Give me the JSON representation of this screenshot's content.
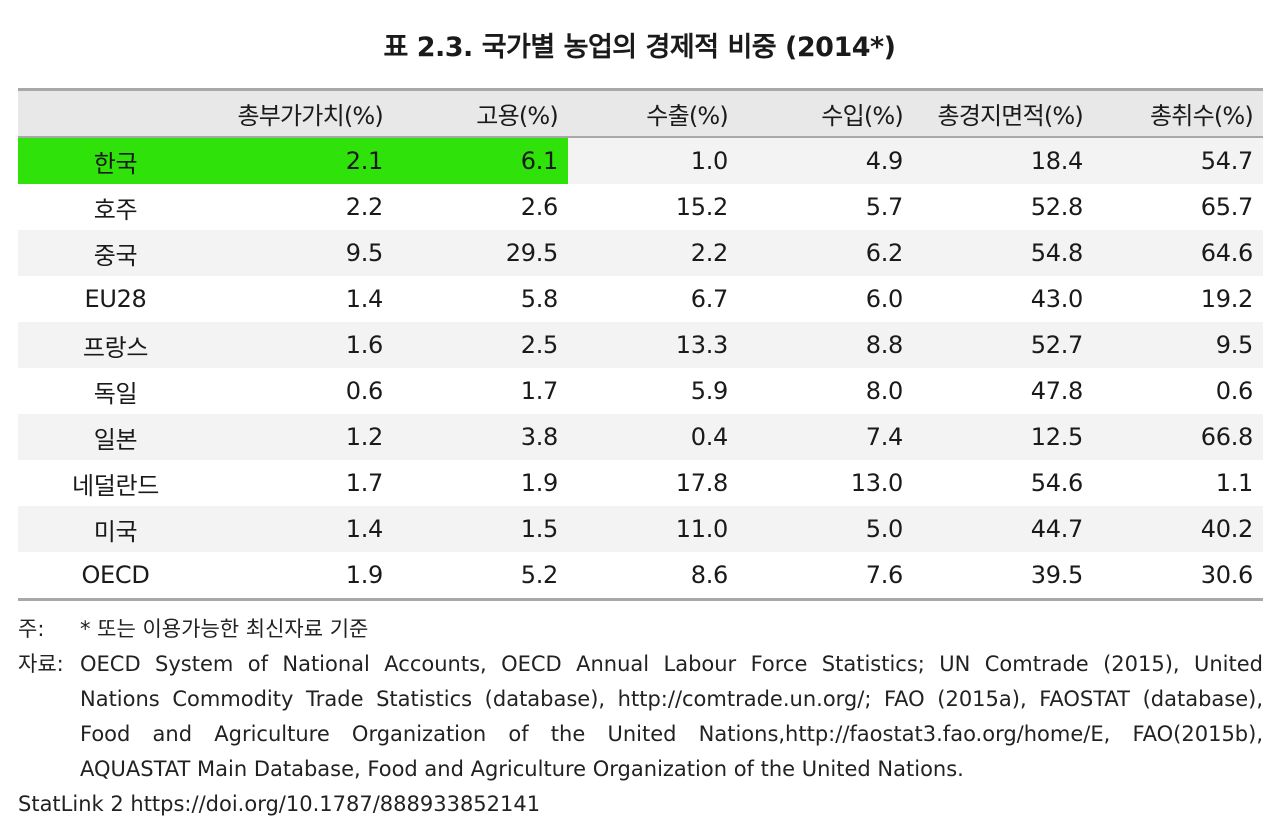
{
  "title": "표 2.3. 국가별 농업의 경제적 비중 (2014*)",
  "table": {
    "columns": [
      "",
      "총부가가치(%)",
      "고용(%)",
      "수출(%)",
      "수입(%)",
      "총경지면적(%)",
      "총취수(%)"
    ],
    "rows": [
      [
        "한국",
        "2.1",
        "6.1",
        "1.0",
        "4.9",
        "18.4",
        "54.7"
      ],
      [
        "호주",
        "2.2",
        "2.6",
        "15.2",
        "5.7",
        "52.8",
        "65.7"
      ],
      [
        "중국",
        "9.5",
        "29.5",
        "2.2",
        "6.2",
        "54.8",
        "64.6"
      ],
      [
        "EU28",
        "1.4",
        "5.8",
        "6.7",
        "6.0",
        "43.0",
        "19.2"
      ],
      [
        "프랑스",
        "1.6",
        "2.5",
        "13.3",
        "8.8",
        "52.7",
        "9.5"
      ],
      [
        "독일",
        "0.6",
        "1.7",
        "5.9",
        "8.0",
        "47.8",
        "0.6"
      ],
      [
        "일본",
        "1.2",
        "3.8",
        "0.4",
        "7.4",
        "12.5",
        "66.8"
      ],
      [
        "네덜란드",
        "1.7",
        "1.9",
        "17.8",
        "13.0",
        "54.6",
        "1.1"
      ],
      [
        "미국",
        "1.4",
        "1.5",
        "11.0",
        "5.0",
        "44.7",
        "40.2"
      ],
      [
        "OECD",
        "1.9",
        "5.2",
        "8.6",
        "7.6",
        "39.5",
        "30.6"
      ]
    ],
    "highlight_color": "#2fe20a"
  },
  "notes": {
    "note_label": "주:",
    "note_text": "* 또는 이용가능한 최신자료 기준",
    "source_label": "자료:",
    "source_lines": [
      "OECD System of National Accounts, OECD Annual Labour Force Statistics; UN Comtrade (2015), United",
      "Nations Commodity Trade Statistics (database), http://comtrade.un.org/; FAO (2015a), FAOSTAT (database),",
      "Food and Agriculture Organization of the United Nations,http://faostat3.fao.org/home/E, FAO(2015b),",
      "AQUASTAT Main Database, Food and Agriculture Organization of the United Nations."
    ],
    "statlink": "StatLink 2 https://doi.org/10.1787/888933852141"
  }
}
